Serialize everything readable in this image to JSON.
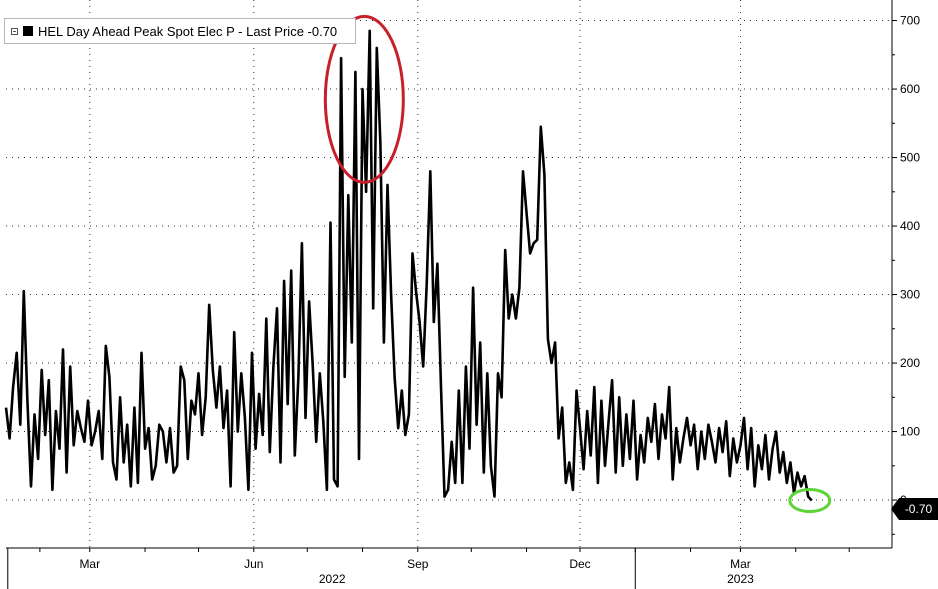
{
  "legend": {
    "label": "HEL Day Ahead Peak Spot Elec P - Last Price -0.70"
  },
  "last_price_flag": "-0.70",
  "colors": {
    "series": "#000000",
    "highlight_circle": "#c8202a",
    "last_price_circle": "#5fd33a",
    "grid": "#333333"
  },
  "chart_data": {
    "type": "line",
    "title": "",
    "xlabel": "",
    "ylabel": "",
    "ylim": [
      -70,
      730
    ],
    "xlim": [
      "2022-01-13",
      "2023-05-25"
    ],
    "y_ticks": [
      0,
      100,
      200,
      300,
      400,
      500,
      600,
      700
    ],
    "y_tick_labels": [
      "0",
      "100",
      "200",
      "300",
      "400",
      "500",
      "600",
      "700"
    ],
    "y_axis_side": "right",
    "x_ticks": [
      {
        "date": "2022-03-01",
        "label": "Mar"
      },
      {
        "date": "2022-06-01",
        "label": "Jun"
      },
      {
        "date": "2022-09-01",
        "label": "Sep"
      },
      {
        "date": "2022-12-01",
        "label": "Dec"
      },
      {
        "date": "2023-03-01",
        "label": "Mar"
      }
    ],
    "year_labels": [
      {
        "date": "2022-07-15",
        "label": "2022"
      },
      {
        "date": "2023-03-01",
        "label": "2023"
      }
    ],
    "year_dividers": [
      "2022-01-14",
      "2023-01-01"
    ],
    "grid": true,
    "legend_position": "top-left",
    "last_value": -0.7,
    "series": [
      {
        "name": "HEL Day Ahead Peak Spot Elec P",
        "points": [
          [
            "2022-01-13",
            135
          ],
          [
            "2022-01-15",
            90
          ],
          [
            "2022-01-17",
            165
          ],
          [
            "2022-01-19",
            215
          ],
          [
            "2022-01-21",
            110
          ],
          [
            "2022-01-23",
            305
          ],
          [
            "2022-01-25",
            145
          ],
          [
            "2022-01-27",
            20
          ],
          [
            "2022-01-29",
            125
          ],
          [
            "2022-01-31",
            60
          ],
          [
            "2022-02-02",
            190
          ],
          [
            "2022-02-04",
            95
          ],
          [
            "2022-02-06",
            175
          ],
          [
            "2022-02-08",
            15
          ],
          [
            "2022-02-10",
            130
          ],
          [
            "2022-02-12",
            75
          ],
          [
            "2022-02-14",
            220
          ],
          [
            "2022-02-16",
            40
          ],
          [
            "2022-02-18",
            195
          ],
          [
            "2022-02-20",
            80
          ],
          [
            "2022-02-22",
            130
          ],
          [
            "2022-02-24",
            105
          ],
          [
            "2022-02-26",
            85
          ],
          [
            "2022-02-28",
            145
          ],
          [
            "2022-03-02",
            80
          ],
          [
            "2022-03-04",
            100
          ],
          [
            "2022-03-06",
            130
          ],
          [
            "2022-03-08",
            60
          ],
          [
            "2022-03-10",
            225
          ],
          [
            "2022-03-12",
            180
          ],
          [
            "2022-03-14",
            55
          ],
          [
            "2022-03-16",
            30
          ],
          [
            "2022-03-18",
            150
          ],
          [
            "2022-03-20",
            55
          ],
          [
            "2022-03-22",
            110
          ],
          [
            "2022-03-24",
            20
          ],
          [
            "2022-03-26",
            135
          ],
          [
            "2022-03-28",
            25
          ],
          [
            "2022-03-30",
            215
          ],
          [
            "2022-04-01",
            75
          ],
          [
            "2022-04-03",
            105
          ],
          [
            "2022-04-05",
            30
          ],
          [
            "2022-04-07",
            50
          ],
          [
            "2022-04-09",
            110
          ],
          [
            "2022-04-11",
            100
          ],
          [
            "2022-04-13",
            55
          ],
          [
            "2022-04-15",
            105
          ],
          [
            "2022-04-17",
            40
          ],
          [
            "2022-04-19",
            50
          ],
          [
            "2022-04-21",
            195
          ],
          [
            "2022-04-23",
            175
          ],
          [
            "2022-04-25",
            60
          ],
          [
            "2022-04-27",
            145
          ],
          [
            "2022-04-29",
            125
          ],
          [
            "2022-05-01",
            185
          ],
          [
            "2022-05-03",
            95
          ],
          [
            "2022-05-05",
            150
          ],
          [
            "2022-05-07",
            285
          ],
          [
            "2022-05-09",
            190
          ],
          [
            "2022-05-11",
            135
          ],
          [
            "2022-05-13",
            195
          ],
          [
            "2022-05-15",
            105
          ],
          [
            "2022-05-17",
            160
          ],
          [
            "2022-05-19",
            20
          ],
          [
            "2022-05-21",
            245
          ],
          [
            "2022-05-23",
            100
          ],
          [
            "2022-05-25",
            185
          ],
          [
            "2022-05-27",
            120
          ],
          [
            "2022-05-29",
            15
          ],
          [
            "2022-05-31",
            215
          ],
          [
            "2022-06-02",
            75
          ],
          [
            "2022-06-04",
            155
          ],
          [
            "2022-06-06",
            95
          ],
          [
            "2022-06-08",
            265
          ],
          [
            "2022-06-10",
            70
          ],
          [
            "2022-06-12",
            195
          ],
          [
            "2022-06-14",
            280
          ],
          [
            "2022-06-16",
            55
          ],
          [
            "2022-06-18",
            320
          ],
          [
            "2022-06-20",
            140
          ],
          [
            "2022-06-22",
            335
          ],
          [
            "2022-06-24",
            65
          ],
          [
            "2022-06-26",
            180
          ],
          [
            "2022-06-28",
            375
          ],
          [
            "2022-06-30",
            120
          ],
          [
            "2022-07-02",
            290
          ],
          [
            "2022-07-04",
            200
          ],
          [
            "2022-07-06",
            85
          ],
          [
            "2022-07-08",
            185
          ],
          [
            "2022-07-10",
            115
          ],
          [
            "2022-07-12",
            15
          ],
          [
            "2022-07-14",
            405
          ],
          [
            "2022-07-16",
            30
          ],
          [
            "2022-07-18",
            20
          ],
          [
            "2022-07-20",
            645
          ],
          [
            "2022-07-22",
            180
          ],
          [
            "2022-07-24",
            445
          ],
          [
            "2022-07-26",
            230
          ],
          [
            "2022-07-28",
            625
          ],
          [
            "2022-07-30",
            60
          ],
          [
            "2022-08-01",
            600
          ],
          [
            "2022-08-03",
            450
          ],
          [
            "2022-08-05",
            685
          ],
          [
            "2022-08-07",
            280
          ],
          [
            "2022-08-09",
            660
          ],
          [
            "2022-08-11",
            520
          ],
          [
            "2022-08-13",
            230
          ],
          [
            "2022-08-15",
            460
          ],
          [
            "2022-08-17",
            300
          ],
          [
            "2022-08-19",
            180
          ],
          [
            "2022-08-21",
            105
          ],
          [
            "2022-08-23",
            160
          ],
          [
            "2022-08-25",
            95
          ],
          [
            "2022-08-27",
            125
          ],
          [
            "2022-08-29",
            360
          ],
          [
            "2022-08-31",
            305
          ],
          [
            "2022-09-02",
            260
          ],
          [
            "2022-09-04",
            195
          ],
          [
            "2022-09-06",
            315
          ],
          [
            "2022-09-08",
            480
          ],
          [
            "2022-09-10",
            260
          ],
          [
            "2022-09-12",
            345
          ],
          [
            "2022-09-14",
            165
          ],
          [
            "2022-09-16",
            5
          ],
          [
            "2022-09-18",
            15
          ],
          [
            "2022-09-20",
            85
          ],
          [
            "2022-09-22",
            25
          ],
          [
            "2022-09-24",
            160
          ],
          [
            "2022-09-26",
            25
          ],
          [
            "2022-09-28",
            195
          ],
          [
            "2022-09-30",
            75
          ],
          [
            "2022-10-02",
            310
          ],
          [
            "2022-10-04",
            110
          ],
          [
            "2022-10-06",
            230
          ],
          [
            "2022-10-08",
            40
          ],
          [
            "2022-10-10",
            185
          ],
          [
            "2022-10-12",
            50
          ],
          [
            "2022-10-14",
            5
          ],
          [
            "2022-10-16",
            185
          ],
          [
            "2022-10-18",
            150
          ],
          [
            "2022-10-20",
            365
          ],
          [
            "2022-10-22",
            265
          ],
          [
            "2022-10-24",
            300
          ],
          [
            "2022-10-26",
            265
          ],
          [
            "2022-10-28",
            310
          ],
          [
            "2022-10-30",
            480
          ],
          [
            "2022-11-01",
            420
          ],
          [
            "2022-11-03",
            360
          ],
          [
            "2022-11-05",
            375
          ],
          [
            "2022-11-07",
            380
          ],
          [
            "2022-11-09",
            545
          ],
          [
            "2022-11-11",
            475
          ],
          [
            "2022-11-13",
            235
          ],
          [
            "2022-11-15",
            200
          ],
          [
            "2022-11-17",
            230
          ],
          [
            "2022-11-19",
            90
          ],
          [
            "2022-11-21",
            135
          ],
          [
            "2022-11-23",
            25
          ],
          [
            "2022-11-25",
            55
          ],
          [
            "2022-11-27",
            15
          ],
          [
            "2022-11-29",
            160
          ],
          [
            "2022-12-01",
            105
          ],
          [
            "2022-12-03",
            45
          ],
          [
            "2022-12-05",
            130
          ],
          [
            "2022-12-07",
            65
          ],
          [
            "2022-12-09",
            165
          ],
          [
            "2022-12-11",
            25
          ],
          [
            "2022-12-13",
            145
          ],
          [
            "2022-12-15",
            50
          ],
          [
            "2022-12-17",
            115
          ],
          [
            "2022-12-19",
            175
          ],
          [
            "2022-12-21",
            40
          ],
          [
            "2022-12-23",
            150
          ],
          [
            "2022-12-25",
            50
          ],
          [
            "2022-12-27",
            125
          ],
          [
            "2022-12-29",
            60
          ],
          [
            "2022-12-31",
            145
          ],
          [
            "2023-01-02",
            30
          ],
          [
            "2023-01-04",
            95
          ],
          [
            "2023-01-06",
            55
          ],
          [
            "2023-01-08",
            120
          ],
          [
            "2023-01-10",
            85
          ],
          [
            "2023-01-12",
            140
          ],
          [
            "2023-01-14",
            60
          ],
          [
            "2023-01-16",
            125
          ],
          [
            "2023-01-18",
            90
          ],
          [
            "2023-01-20",
            165
          ],
          [
            "2023-01-22",
            30
          ],
          [
            "2023-01-24",
            105
          ],
          [
            "2023-01-26",
            55
          ],
          [
            "2023-01-28",
            90
          ],
          [
            "2023-01-30",
            120
          ],
          [
            "2023-02-01",
            80
          ],
          [
            "2023-02-03",
            110
          ],
          [
            "2023-02-05",
            45
          ],
          [
            "2023-02-07",
            100
          ],
          [
            "2023-02-09",
            60
          ],
          [
            "2023-02-11",
            110
          ],
          [
            "2023-02-13",
            85
          ],
          [
            "2023-02-15",
            55
          ],
          [
            "2023-02-17",
            105
          ],
          [
            "2023-02-19",
            70
          ],
          [
            "2023-02-21",
            115
          ],
          [
            "2023-02-23",
            35
          ],
          [
            "2023-02-25",
            90
          ],
          [
            "2023-02-27",
            55
          ],
          [
            "2023-03-01",
            80
          ],
          [
            "2023-03-03",
            120
          ],
          [
            "2023-03-05",
            45
          ],
          [
            "2023-03-07",
            105
          ],
          [
            "2023-03-09",
            20
          ],
          [
            "2023-03-11",
            80
          ],
          [
            "2023-03-13",
            45
          ],
          [
            "2023-03-15",
            95
          ],
          [
            "2023-03-17",
            30
          ],
          [
            "2023-03-19",
            75
          ],
          [
            "2023-03-21",
            100
          ],
          [
            "2023-03-23",
            40
          ],
          [
            "2023-03-25",
            70
          ],
          [
            "2023-03-27",
            25
          ],
          [
            "2023-03-29",
            55
          ],
          [
            "2023-03-31",
            10
          ],
          [
            "2023-04-02",
            40
          ],
          [
            "2023-04-04",
            20
          ],
          [
            "2023-04-06",
            35
          ],
          [
            "2023-04-08",
            5
          ],
          [
            "2023-04-10",
            -0.7
          ]
        ]
      }
    ],
    "annotations": [
      {
        "shape": "ellipse",
        "color": "red",
        "around": "2022-07-20 to 2022-08-15 peak (~460-700)"
      },
      {
        "shape": "ellipse",
        "color": "green",
        "around": "last value near 0"
      }
    ]
  }
}
